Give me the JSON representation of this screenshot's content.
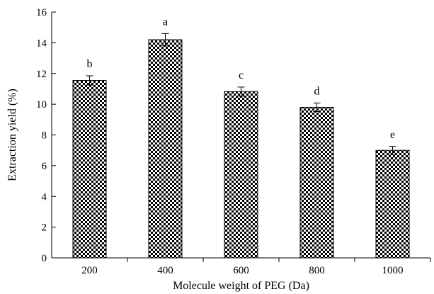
{
  "chart_data": {
    "type": "bar",
    "xlabel": "Molecule weight of PEG (Da)",
    "ylabel": "Extraction yield (%)",
    "categories": [
      "200",
      "400",
      "600",
      "800",
      "1000"
    ],
    "values": [
      11.55,
      14.2,
      10.82,
      9.8,
      7.0
    ],
    "errors": [
      0.3,
      0.4,
      0.3,
      0.28,
      0.25
    ],
    "significance_labels": [
      "b",
      "a",
      "c",
      "d",
      "e"
    ],
    "ylim": [
      0,
      16
    ],
    "yticks": [
      0,
      2,
      4,
      6,
      8,
      10,
      12,
      14,
      16
    ],
    "bar_fill": "checkered black-white",
    "grid": false,
    "colors": {
      "bar": "#000000",
      "background": "#ffffff"
    }
  }
}
